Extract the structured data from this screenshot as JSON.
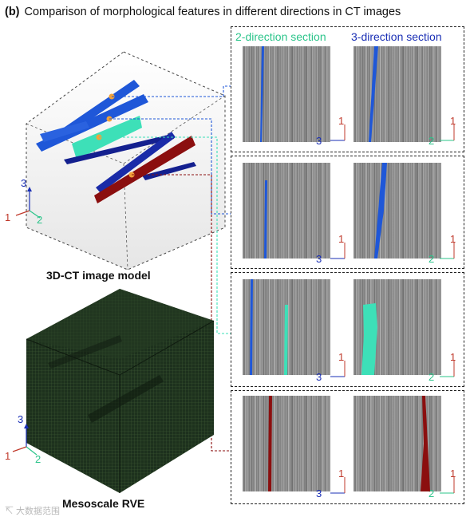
{
  "figure": {
    "panel_label": "(b)",
    "title": "Comparison of morphological features in different directions in CT images",
    "caption_ct": "3D-CT image model",
    "caption_rve": "Mesoscale RVE",
    "watermark": "↸ 大数据范围"
  },
  "column_headers": {
    "dir2": "2-direction section",
    "dir3": "3-direction section"
  },
  "axes": {
    "one": "1",
    "two": "2",
    "three": "3"
  },
  "colors": {
    "blue": "#1f57d8",
    "navy": "#14208f",
    "cyan": "#3de0b8",
    "darkred": "#8b0f0f",
    "orange": "#f2a23a",
    "rve": "#1b2e1b"
  }
}
